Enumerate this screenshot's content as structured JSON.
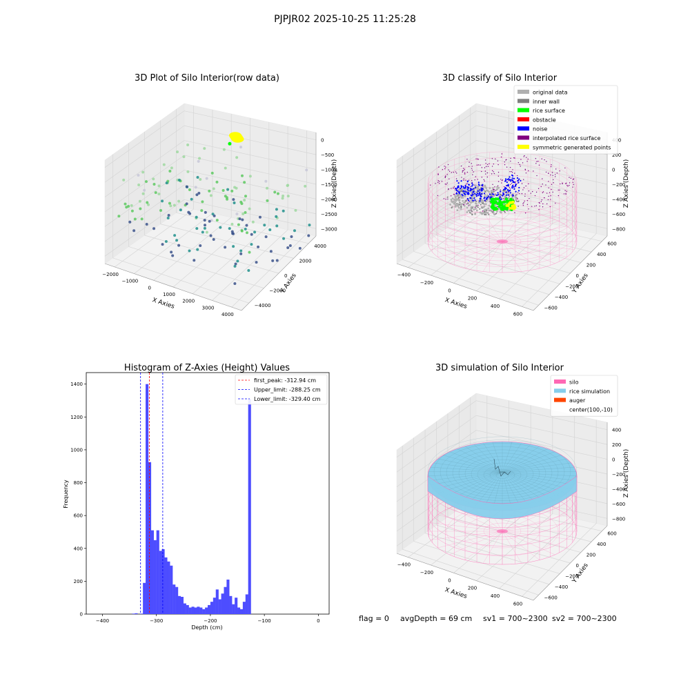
{
  "suptitle": "PJPJR02 2025-10-25 11:25:28",
  "colors": {
    "pink": "#ff69b4",
    "blue": "#0000ff",
    "green": "#00ff00",
    "yellow": "#ffff00",
    "gray": "#b0b0b0",
    "darkgray": "#808080",
    "red": "#ff0000",
    "purple": "#800080",
    "skyblue": "#87ceeb",
    "orange": "#ff4500",
    "hist": "#4d4dff"
  },
  "chart_data": [
    {
      "type": "scatter",
      "title": "3D Plot of Silo Interior(row data)",
      "xlabel": "X Axies",
      "ylabel": "Y Axies",
      "zlabel": "Z Axies (Depth)",
      "x_ticks": [
        "−2000",
        "−1000",
        "0",
        "1000",
        "2000",
        "3000",
        "4000"
      ],
      "y_ticks": [
        "−4000",
        "−2000",
        "0",
        "2000",
        "4000"
      ],
      "z_ticks": [
        "−3000",
        "−2500",
        "−2000",
        "−1500",
        "−1000",
        "−500",
        "0"
      ],
      "xlim": [
        -2500,
        4500
      ],
      "ylim": [
        -4500,
        4500
      ],
      "zlim": [
        -3200,
        100
      ],
      "colormap": "viridis",
      "yellow_cluster": {
        "x": 400,
        "y": 3800,
        "z": -400
      }
    },
    {
      "type": "scatter",
      "title": "3D classify of Silo Interior",
      "xlabel": "X Axies",
      "ylabel": "Y Axies",
      "zlabel": "Z Axies (Depth)",
      "x_ticks": [
        "−400",
        "−200",
        "0",
        "200",
        "400",
        "600"
      ],
      "y_ticks": [
        "−600",
        "−400",
        "−200",
        "0",
        "200",
        "400",
        "600"
      ],
      "z_ticks": [
        "−800",
        "−600",
        "−400",
        "−200",
        "0",
        "200",
        "400"
      ],
      "xlim": [
        -550,
        750
      ],
      "ylim": [
        -650,
        650
      ],
      "zlim": [
        -900,
        450
      ],
      "legend": [
        "original data",
        "inner wall",
        "rice surface",
        "obstacle",
        "noise",
        "interpolated rice surface",
        "symmetric generated points"
      ],
      "legend_position": "upper-right"
    },
    {
      "type": "bar",
      "title": "Histogram of Z-Axies (Height) Values",
      "xlabel": "Depth (cm)",
      "ylabel": "Frequency",
      "xlim": [
        -430,
        20
      ],
      "ylim": [
        0,
        1470
      ],
      "x_ticks": [
        -400,
        -300,
        -200,
        -100,
        0
      ],
      "y_ticks": [
        0,
        200,
        400,
        600,
        800,
        1000,
        1200,
        1400
      ],
      "bin_start": -345,
      "bin_width": 5,
      "values": [
        3,
        5,
        0,
        3,
        190,
        1400,
        925,
        510,
        450,
        510,
        385,
        395,
        345,
        320,
        295,
        180,
        165,
        110,
        105,
        65,
        55,
        40,
        45,
        40,
        45,
        40,
        30,
        40,
        55,
        75,
        100,
        150,
        90,
        125,
        165,
        210,
        110,
        60,
        100,
        40,
        30,
        75,
        120,
        1310
      ],
      "lines": [
        {
          "label": "first_peak: -312.94 cm",
          "x": -312.94,
          "color": "#ff0000"
        },
        {
          "label": "Upper_limit: -288.25 cm",
          "x": -288.25,
          "color": "#0000ff"
        },
        {
          "label": "Lower_limit: -329.40 cm",
          "x": -329.4,
          "color": "#0000ff"
        }
      ],
      "legend_position": "upper-right"
    },
    {
      "type": "scatter",
      "title": "3D simulation of Silo Interior",
      "xlabel": "X Axies",
      "ylabel": "Y Axies",
      "zlabel": "Z Axies (Depth)",
      "x_ticks": [
        "−400",
        "−200",
        "0",
        "200",
        "400",
        "600"
      ],
      "y_ticks": [
        "−600",
        "−400",
        "−200",
        "0",
        "200",
        "400",
        "600"
      ],
      "z_ticks": [
        "−800",
        "−600",
        "−400",
        "−200",
        "0",
        "200",
        "400"
      ],
      "xlim": [
        -550,
        750
      ],
      "ylim": [
        -650,
        650
      ],
      "zlim": [
        -900,
        450
      ],
      "legend": [
        "silo",
        "rice simulation",
        "auger",
        "center(100,-10)"
      ],
      "legend_position": "upper-right"
    }
  ],
  "status": {
    "flag": "flag = 0",
    "avg_depth": "avgDepth = 69 cm",
    "sv1": "sv1 = 700~2300",
    "sv2": "sv2 = 700~2300"
  }
}
